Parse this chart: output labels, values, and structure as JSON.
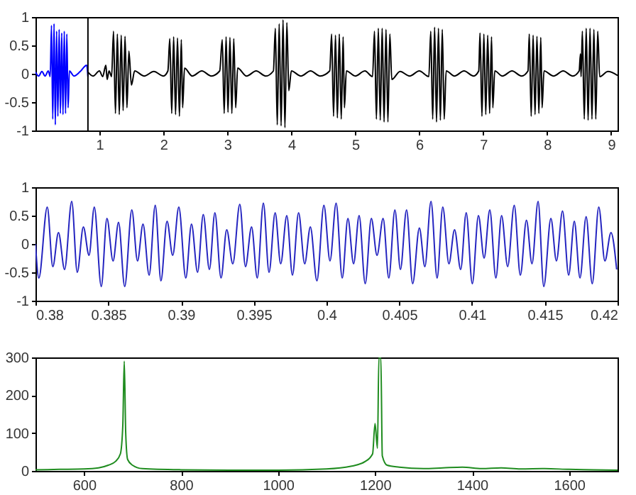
{
  "chart_data": [
    {
      "type": "line",
      "xlim": [
        0,
        9.1
      ],
      "ylim": [
        -1,
        1
      ],
      "xticks": [
        1,
        2,
        3,
        4,
        5,
        6,
        7,
        8,
        9
      ],
      "yticks": [
        -1,
        -0.5,
        0,
        0.5,
        1
      ],
      "ref_lines": [
        {
          "axis": "x",
          "value": 0.82,
          "color": "#000000"
        }
      ],
      "series": [
        {
          "color": "#0000ff",
          "x": [
            0,
            0.05,
            0.1,
            0.15,
            0.2,
            0.23,
            0.25,
            0.27,
            0.29,
            0.31,
            0.33,
            0.35,
            0.37,
            0.39,
            0.41,
            0.43,
            0.45,
            0.47,
            0.49,
            0.51,
            0.53,
            0.6,
            0.7,
            0.8,
            0.82
          ],
          "values": [
            0.03,
            -0.04,
            0.04,
            -0.04,
            0.05,
            -0.05,
            0.85,
            -0.8,
            0.88,
            -0.9,
            0.75,
            -0.75,
            0.78,
            -0.7,
            0.72,
            -0.72,
            0.75,
            -0.7,
            0.7,
            -0.6,
            0.05,
            -0.04,
            0.04,
            0.15,
            -0.05
          ]
        },
        {
          "color": "#000000",
          "x": [
            0.82,
            0.9,
            1.0,
            1.05,
            1.1,
            1.12,
            1.15,
            1.19,
            1.22,
            1.25,
            1.28,
            1.31,
            1.34,
            1.37,
            1.4,
            1.43,
            1.46,
            1.5,
            1.55,
            1.7,
            1.85,
            2.0,
            2.07,
            2.1,
            2.13,
            2.16,
            2.19,
            2.22,
            2.25,
            2.28,
            2.3,
            2.33,
            2.45,
            2.6,
            2.75,
            2.88,
            2.92,
            2.95,
            2.98,
            3.01,
            3.04,
            3.07,
            3.1,
            3.13,
            3.16,
            3.3,
            3.45,
            3.6,
            3.72,
            3.75,
            3.78,
            3.81,
            3.84,
            3.87,
            3.9,
            3.93,
            3.96,
            4.0,
            4.15,
            4.3,
            4.45,
            4.6,
            4.63,
            4.66,
            4.69,
            4.72,
            4.75,
            4.78,
            4.81,
            4.83,
            4.86,
            5.0,
            5.15,
            5.27,
            5.3,
            5.33,
            5.36,
            5.39,
            5.42,
            5.45,
            5.48,
            5.51,
            5.54,
            5.57,
            5.7,
            5.85,
            6.0,
            6.15,
            6.18,
            6.21,
            6.24,
            6.27,
            6.3,
            6.33,
            6.36,
            6.39,
            6.42,
            6.55,
            6.7,
            6.85,
            6.93,
            6.95,
            6.98,
            7.01,
            7.04,
            7.07,
            7.1,
            7.13,
            7.15,
            7.18,
            7.3,
            7.45,
            7.6,
            7.7,
            7.72,
            7.75,
            7.78,
            7.81,
            7.84,
            7.87,
            7.9,
            7.92,
            7.95,
            8.1,
            8.25,
            8.4,
            8.5,
            8.52,
            8.53,
            8.55,
            8.58,
            8.61,
            8.64,
            8.67,
            8.7,
            8.73,
            8.76,
            8.79,
            8.82,
            8.95,
            9.1
          ],
          "values": [
            0.03,
            -0.04,
            0.05,
            -0.05,
            0.15,
            -0.1,
            0.05,
            -0.05,
            0.75,
            -0.7,
            0.7,
            -0.72,
            0.68,
            -0.65,
            0.66,
            -0.6,
            0.4,
            -0.2,
            0.05,
            -0.04,
            0.04,
            -0.04,
            0.05,
            0.62,
            -0.7,
            0.65,
            -0.72,
            0.63,
            -0.75,
            0.6,
            -0.6,
            0.1,
            -0.04,
            0.05,
            -0.04,
            0.05,
            0.6,
            -0.7,
            0.65,
            -0.68,
            0.64,
            -0.7,
            0.62,
            -0.6,
            0.1,
            -0.04,
            0.05,
            -0.04,
            0.05,
            0.8,
            -0.9,
            0.88,
            -0.92,
            0.95,
            -0.95,
            0.9,
            -0.3,
            0.05,
            -0.04,
            0.05,
            -0.04,
            0.05,
            0.7,
            -0.75,
            0.68,
            -0.78,
            0.7,
            -0.8,
            0.65,
            -0.6,
            0.05,
            -0.04,
            0.05,
            -0.05,
            0.75,
            -0.8,
            0.8,
            -0.82,
            0.8,
            -0.85,
            0.78,
            -0.85,
            0.7,
            -0.1,
            0.04,
            -0.04,
            0.05,
            -0.05,
            0.75,
            -0.8,
            0.82,
            -0.85,
            0.8,
            -0.82,
            0.78,
            -0.8,
            0.05,
            -0.04,
            0.05,
            -0.04,
            0.05,
            0.72,
            -0.75,
            0.7,
            -0.72,
            0.68,
            -0.7,
            0.65,
            -0.6,
            0.05,
            -0.04,
            0.05,
            -0.04,
            0.05,
            0.7,
            -0.75,
            0.68,
            -0.72,
            0.66,
            -0.7,
            0.64,
            -0.6,
            0.05,
            -0.04,
            0.05,
            -0.04,
            0.05,
            0.35,
            -0.05,
            0.75,
            -0.8,
            0.8,
            -0.82,
            0.8,
            -0.8,
            0.78,
            -0.8,
            0.75,
            -0.05,
            0.04,
            -0.03
          ]
        }
      ]
    },
    {
      "type": "line",
      "xlim": [
        0.38,
        0.42
      ],
      "ylim": [
        -1,
        1
      ],
      "xticks": [
        0.38,
        0.385,
        0.39,
        0.395,
        0.4,
        0.405,
        0.41,
        0.415,
        0.42
      ],
      "yticks": [
        -1,
        -0.5,
        0,
        0.5,
        1
      ],
      "series": [
        {
          "color": "#2424c0",
          "x": [
            0.38,
            0.38023,
            0.38081,
            0.38119,
            0.38158,
            0.382,
            0.38249,
            0.38287,
            0.38329,
            0.38368,
            0.38404,
            0.38452,
            0.38491,
            0.38533,
            0.38571,
            0.38613,
            0.38662,
            0.38701,
            0.38739,
            0.38781,
            0.38823,
            0.38862,
            0.38904,
            0.38943,
            0.38985,
            0.39033,
            0.39072,
            0.39114,
            0.39153,
            0.39195,
            0.39233,
            0.39275,
            0.39314,
            0.39356,
            0.39404,
            0.39443,
            0.39485,
            0.39524,
            0.39566,
            0.39605,
            0.39647,
            0.39685,
            0.39727,
            0.39766,
            0.39808,
            0.3985,
            0.39889,
            0.39934,
            0.39982,
            0.40024,
            0.40066,
            0.40108,
            0.40147,
            0.40186,
            0.40224,
            0.40266,
            0.40308,
            0.40347,
            0.40389,
            0.40428,
            0.4047,
            0.40508,
            0.4055,
            0.40592,
            0.40638,
            0.40676,
            0.40718,
            0.4076,
            0.40799,
            0.40841,
            0.4088,
            0.40922,
            0.4096,
            0.41002,
            0.41044,
            0.41083,
            0.41122,
            0.41164,
            0.41203,
            0.41245,
            0.4129,
            0.41332,
            0.41374,
            0.41412,
            0.41454,
            0.41493,
            0.41542,
            0.4158,
            0.41622,
            0.41664,
            0.41703,
            0.41742,
            0.41784,
            0.41826,
            0.41871,
            0.41913,
            0.41955,
            0.41994
          ],
          "values": [
            0,
            -0.6,
            0.65,
            -0.4,
            0.2,
            -0.45,
            0.75,
            -0.5,
            0.3,
            -0.2,
            0.65,
            -0.75,
            0.45,
            -0.3,
            0.38,
            -0.75,
            0.6,
            -0.3,
            0.35,
            -0.55,
            0.68,
            -0.65,
            0.4,
            -0.2,
            0.65,
            -0.6,
            0.35,
            -0.5,
            0.52,
            -0.45,
            0.55,
            -0.6,
            0.25,
            -0.35,
            0.7,
            -0.4,
            0.3,
            -0.6,
            0.72,
            -0.5,
            0.55,
            -0.35,
            0.5,
            -0.55,
            0.55,
            -0.35,
            0.3,
            -0.65,
            0.68,
            -0.3,
            0.72,
            -0.6,
            0.45,
            -0.35,
            0.5,
            -0.7,
            0.45,
            -0.2,
            0.45,
            -0.6,
            0.6,
            -0.45,
            0.6,
            -0.7,
            0.28,
            -0.4,
            0.75,
            -0.6,
            0.65,
            -0.35,
            0.25,
            -0.45,
            0.55,
            -0.7,
            0.5,
            -0.25,
            0.6,
            -0.6,
            0.5,
            -0.4,
            0.68,
            -0.55,
            0.42,
            -0.35,
            0.75,
            -0.75,
            0.45,
            -0.3,
            0.58,
            -0.55,
            0.4,
            -0.6,
            0.48,
            -0.7,
            0.65,
            -0.3,
            0.2,
            -0.45
          ]
        }
      ]
    },
    {
      "type": "line",
      "xlim": [
        500,
        1700
      ],
      "ylim": [
        0,
        300
      ],
      "xticks": [
        600,
        800,
        1000,
        1200,
        1400,
        1600
      ],
      "yticks": [
        0,
        100,
        200,
        300
      ],
      "series": [
        {
          "color": "#1f8c1f",
          "x": [
            500,
            550,
            600,
            630,
            650,
            665,
            675,
            680,
            683,
            686,
            690,
            700,
            720,
            800,
            900,
            1000,
            1100,
            1150,
            1180,
            1195,
            1200,
            1205,
            1208,
            1212,
            1215,
            1225,
            1250,
            1300,
            1340,
            1380,
            1420,
            1460,
            1500,
            1550,
            1600,
            1650,
            1700
          ],
          "values": [
            3,
            4,
            5,
            8,
            15,
            25,
            45,
            120,
            290,
            100,
            30,
            15,
            6,
            3,
            2,
            2,
            5,
            12,
            25,
            45,
            125,
            60,
            300,
            300,
            40,
            15,
            10,
            6,
            8,
            10,
            6,
            8,
            5,
            6,
            4,
            3,
            2
          ]
        }
      ]
    }
  ]
}
